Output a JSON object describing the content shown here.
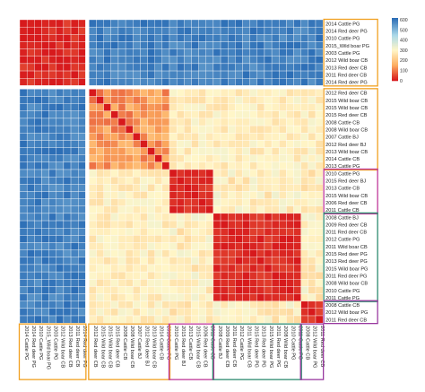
{
  "chart_data": {
    "type": "heatmap",
    "title": "",
    "labels": [
      "2014 Cattle PG",
      "2014 Red deer PG",
      "2010 Cattle PG",
      "2015_Wild boar PG",
      "2003 Cattle PG",
      "2012 Wild boar CB",
      "2013 Red deer CB",
      "2011 Red deer CB",
      "2014 Red deer PG",
      "2012 Red deer CB",
      "2015 Wild boar CB",
      "2015 Wild boar CB",
      "2015 Red deer CB",
      "2008 Cattle CB",
      "2008 Wild boar CB",
      "2007 Cattle BJ",
      "2012 Red deer BJ",
      "2013 Wild boar CB",
      "2014 Cattle CB",
      "2013 Cattle PG",
      "2010 Cattle PG",
      "2015 Red deer BJ",
      "2013 Cattle CB",
      "2015 Wild boar CB",
      "2006 Red deer CB",
      "2011 Cattle CB",
      "2008 Cattle BJ",
      "2009 Red deer CB",
      "2011 Red deer CB",
      "2012 Cattle PG",
      "2011 Wild boar CB",
      "2015 Red deer PG",
      "2013 Red deer PG",
      "2015 Wild boar PG",
      "2011 Red deer PG",
      "2008 Wild boar CB",
      "2010 Cattle PG",
      "2011 Cattle PG",
      "2008 Cattle CB",
      "2012 Wild boar PG",
      "2011 Red deer CB"
    ],
    "clusters": [
      {
        "start": 0,
        "end": 8,
        "color": "#f0a020"
      },
      {
        "start": 9,
        "end": 19,
        "color": "#f0a020"
      },
      {
        "start": 20,
        "end": 25,
        "color": "#c0389a"
      },
      {
        "start": 26,
        "end": 37,
        "color": "#2e8b70"
      },
      {
        "start": 38,
        "end": 40,
        "color": "#9a3aa0"
      }
    ],
    "value_ranges": {
      "within_cluster_1": [
        0,
        40
      ],
      "cluster1_vs_others": [
        560,
        620
      ],
      "within_cluster_2": [
        80,
        180
      ],
      "cluster2_vs_3_4_5": [
        250,
        320
      ],
      "within_small_clusters": [
        0,
        40
      ],
      "between_small_clusters": [
        240,
        330
      ]
    },
    "colorbar": {
      "ticks": [
        600,
        500,
        400,
        300,
        200,
        100,
        0
      ],
      "range": [
        0,
        620
      ],
      "colors": [
        "#d7191c",
        "#fdae61",
        "#ffffbf",
        "#abd9e9",
        "#2c7bb6"
      ]
    }
  }
}
